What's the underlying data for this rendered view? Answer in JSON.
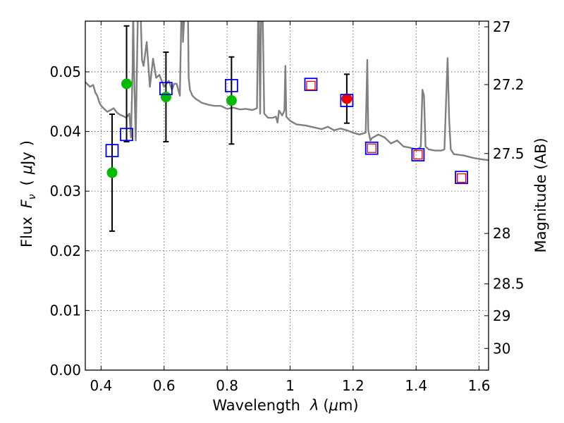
{
  "chart_data": {
    "type": "scatter",
    "xlabel": {
      "prefix": "Wavelength",
      "symbol": "λ",
      "unit_open": "(",
      "unit_mu": "μ",
      "unit_rest": "m)"
    },
    "ylabel": {
      "prefix": "Flux",
      "symbol": "F",
      "subscript": "ν",
      "unit_open": "(",
      "unit_mu": "μ",
      "unit_rest": "Jy",
      "unit_close": ")"
    },
    "y2label": "Magnitude (AB)",
    "xlim": [
      0.35,
      1.63
    ],
    "ylim": [
      0.0,
      0.0585
    ],
    "grid": true,
    "x_ticks": [
      {
        "value": 0.4,
        "label": "0.4"
      },
      {
        "value": 0.6,
        "label": "0.6"
      },
      {
        "value": 0.8,
        "label": "0.8"
      },
      {
        "value": 1.0,
        "label": "1"
      },
      {
        "value": 1.2,
        "label": "1.2"
      },
      {
        "value": 1.4,
        "label": "1.4"
      },
      {
        "value": 1.6,
        "label": "1.6"
      }
    ],
    "y_ticks": [
      {
        "value": 0.0,
        "label": "0.00"
      },
      {
        "value": 0.01,
        "label": "0.01"
      },
      {
        "value": 0.02,
        "label": "0.02"
      },
      {
        "value": 0.03,
        "label": "0.03"
      },
      {
        "value": 0.04,
        "label": "0.04"
      },
      {
        "value": 0.05,
        "label": "0.05"
      }
    ],
    "y2_ticks": [
      {
        "mag": 27,
        "label": "27"
      },
      {
        "mag": 27.2,
        "label": "27.2"
      },
      {
        "mag": 27.5,
        "label": "27.5"
      },
      {
        "mag": 28,
        "label": "28"
      },
      {
        "mag": 28.5,
        "label": "28.5"
      },
      {
        "mag": 29,
        "label": "29"
      },
      {
        "mag": 30,
        "label": "30"
      }
    ],
    "series": [
      {
        "name": "model SED",
        "kind": "line",
        "color": "#808080",
        "x": [
          0.35,
          0.365,
          0.375,
          0.382,
          0.388,
          0.395,
          0.402,
          0.41,
          0.42,
          0.43,
          0.44,
          0.45,
          0.46,
          0.47,
          0.48,
          0.49,
          0.495,
          0.5,
          0.502,
          0.505,
          0.51,
          0.52,
          0.53,
          0.535,
          0.545,
          0.555,
          0.565,
          0.575,
          0.585,
          0.6,
          0.615,
          0.625,
          0.632,
          0.64,
          0.65,
          0.655,
          0.658,
          0.66,
          0.665,
          0.672,
          0.675,
          0.678,
          0.682,
          0.69,
          0.7,
          0.72,
          0.74,
          0.76,
          0.78,
          0.8,
          0.82,
          0.84,
          0.86,
          0.88,
          0.895,
          0.9,
          0.905,
          0.91,
          0.918,
          0.93,
          0.945,
          0.955,
          0.96,
          0.965,
          0.975,
          0.982,
          0.985,
          0.988,
          1.0,
          1.02,
          1.05,
          1.1,
          1.12,
          1.14,
          1.16,
          1.18,
          1.2,
          1.22,
          1.24,
          1.245,
          1.248,
          1.255,
          1.26,
          1.28,
          1.3,
          1.32,
          1.34,
          1.36,
          1.38,
          1.4,
          1.41,
          1.415,
          1.42,
          1.425,
          1.43,
          1.44,
          1.46,
          1.48,
          1.49,
          1.495,
          1.5,
          1.505,
          1.51,
          1.52,
          1.55,
          1.58,
          1.6,
          1.63
        ],
        "y": [
          0.0483,
          0.0475,
          0.0478,
          0.0465,
          0.046,
          0.0448,
          0.0442,
          0.0438,
          0.0433,
          0.0436,
          0.0439,
          0.0432,
          0.0428,
          0.0426,
          0.0423,
          0.043,
          0.039,
          0.05,
          0.06,
          0.0495,
          0.0385,
          0.07,
          0.052,
          0.051,
          0.055,
          0.0475,
          0.0522,
          0.049,
          0.0495,
          0.0475,
          0.0485,
          0.047,
          0.048,
          0.048,
          0.046,
          0.06,
          0.07,
          0.055,
          0.06,
          0.07,
          0.065,
          0.049,
          0.047,
          0.046,
          0.0455,
          0.0448,
          0.0445,
          0.0443,
          0.0443,
          0.0438,
          0.044,
          0.0437,
          0.0438,
          0.0436,
          0.0439,
          0.065,
          0.043,
          0.07,
          0.043,
          0.0423,
          0.0423,
          0.0425,
          0.0415,
          0.0435,
          0.0427,
          0.0435,
          0.051,
          0.0425,
          0.0418,
          0.0412,
          0.041,
          0.0404,
          0.0408,
          0.0402,
          0.0405,
          0.0402,
          0.0398,
          0.0395,
          0.0398,
          0.052,
          0.0402,
          0.0385,
          0.0389,
          0.0395,
          0.039,
          0.038,
          0.0385,
          0.0375,
          0.0373,
          0.037,
          0.0372,
          0.0375,
          0.047,
          0.046,
          0.0375,
          0.037,
          0.0368,
          0.0368,
          0.037,
          0.045,
          0.0523,
          0.042,
          0.037,
          0.0362,
          0.036,
          0.0356,
          0.0354,
          0.0352
        ]
      },
      {
        "name": "green photometry",
        "kind": "circle",
        "color": "#00bb00",
        "points": [
          {
            "x": 0.435,
            "y": 0.0331,
            "err": 0.0098
          },
          {
            "x": 0.481,
            "y": 0.048,
            "err": 0.0097
          },
          {
            "x": 0.606,
            "y": 0.0458,
            "err": 0.0075
          },
          {
            "x": 0.814,
            "y": 0.0452,
            "err": 0.0073
          }
        ]
      },
      {
        "name": "red photometry",
        "kind": "circle",
        "color": "#ee0000",
        "points": [
          {
            "x": 1.18,
            "y": 0.0455,
            "err": 0.0041
          }
        ]
      },
      {
        "name": "model blue squares",
        "kind": "square",
        "color": "#0000ee",
        "points": [
          {
            "x": 0.435,
            "y": 0.0368
          },
          {
            "x": 0.481,
            "y": 0.0395
          },
          {
            "x": 0.606,
            "y": 0.0472
          },
          {
            "x": 0.814,
            "y": 0.0477
          },
          {
            "x": 1.066,
            "y": 0.0479
          },
          {
            "x": 1.18,
            "y": 0.0452
          },
          {
            "x": 1.259,
            "y": 0.0372
          },
          {
            "x": 1.406,
            "y": 0.0361
          },
          {
            "x": 1.544,
            "y": 0.0323
          }
        ]
      },
      {
        "name": "red squares",
        "kind": "small-square",
        "color": "#ee0000",
        "points": [
          {
            "x": 1.066,
            "y": 0.0477
          },
          {
            "x": 1.259,
            "y": 0.0372
          },
          {
            "x": 1.406,
            "y": 0.0361
          },
          {
            "x": 1.544,
            "y": 0.0322
          }
        ]
      }
    ]
  }
}
